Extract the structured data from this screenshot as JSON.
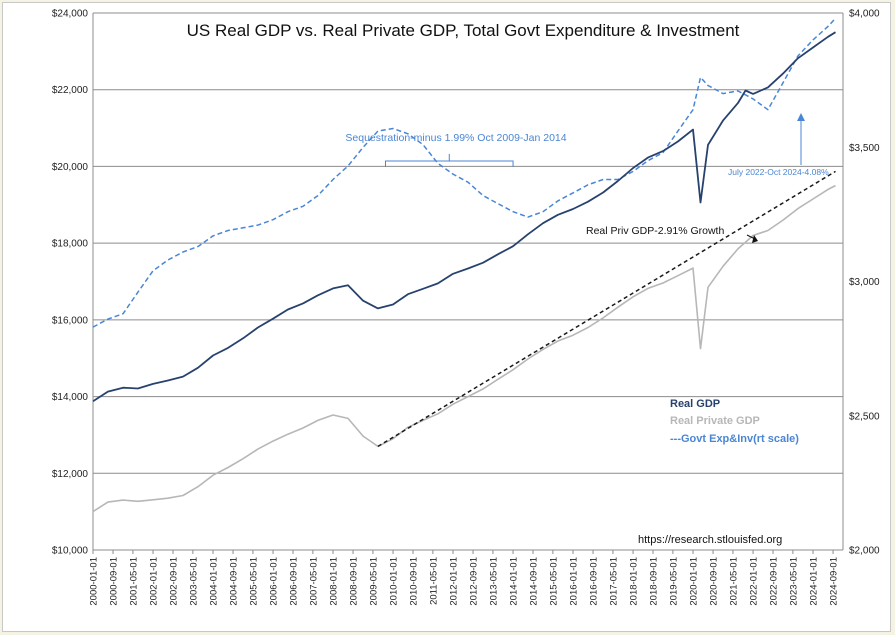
{
  "chart_data": {
    "type": "line",
    "title": "US Real GDP vs. Real Private GDP, Total Govt Expenditure & Investment",
    "source": "https://research.stlouisfed.org",
    "x_tick_labels": [
      "2000-01-01",
      "2000-09-01",
      "2001-05-01",
      "2002-01-01",
      "2002-09-01",
      "2003-05-01",
      "2004-01-01",
      "2004-09-01",
      "2005-05-01",
      "2006-01-01",
      "2006-09-01",
      "2007-05-01",
      "2008-01-01",
      "2008-09-01",
      "2009-05-01",
      "2010-01-01",
      "2010-09-01",
      "2011-05-01",
      "2012-01-01",
      "2012-09-01",
      "2013-05-01",
      "2014-01-01",
      "2014-09-01",
      "2015-05-01",
      "2016-01-01",
      "2016-09-01",
      "2017-05-01",
      "2018-01-01",
      "2018-09-01",
      "2019-05-01",
      "2020-01-01",
      "2020-09-01",
      "2021-05-01",
      "2022-01-01",
      "2022-09-01",
      "2023-05-01",
      "2024-01-01",
      "2024-09-01"
    ],
    "xlim": [
      "2000-01-01",
      "2024-12-31"
    ],
    "ylim_left": [
      10000,
      24000
    ],
    "y_left_ticks": [
      "$10,000",
      "$12,000",
      "$14,000",
      "$16,000",
      "$18,000",
      "$20,000",
      "$22,000",
      "$24,000"
    ],
    "ylim_right": [
      2000,
      4000
    ],
    "y_right_ticks": [
      "$2,000",
      "$2,500",
      "$3,000",
      "$3,500",
      "$4,000"
    ],
    "grid": true,
    "legend_position": "right",
    "colors": {
      "real_gdp": "#27426e",
      "real_private_gdp": "#b7b7b7",
      "govt": "#4a86d4",
      "trend": "#1a1a1a"
    },
    "series": [
      {
        "name": "Real GDP",
        "axis": "left",
        "points": [
          [
            "2000-01-01",
            13880
          ],
          [
            "2000-07-01",
            14130
          ],
          [
            "2001-01-01",
            14230
          ],
          [
            "2001-07-01",
            14210
          ],
          [
            "2002-01-01",
            14330
          ],
          [
            "2002-07-01",
            14420
          ],
          [
            "2003-01-01",
            14520
          ],
          [
            "2003-07-01",
            14750
          ],
          [
            "2004-01-01",
            15070
          ],
          [
            "2004-07-01",
            15270
          ],
          [
            "2005-01-01",
            15520
          ],
          [
            "2005-07-01",
            15800
          ],
          [
            "2006-01-01",
            16030
          ],
          [
            "2006-07-01",
            16270
          ],
          [
            "2007-01-01",
            16430
          ],
          [
            "2007-07-01",
            16640
          ],
          [
            "2008-01-01",
            16820
          ],
          [
            "2008-07-01",
            16900
          ],
          [
            "2009-01-01",
            16500
          ],
          [
            "2009-07-01",
            16300
          ],
          [
            "2010-01-01",
            16400
          ],
          [
            "2010-07-01",
            16670
          ],
          [
            "2011-01-01",
            16810
          ],
          [
            "2011-07-01",
            16950
          ],
          [
            "2012-01-01",
            17200
          ],
          [
            "2012-07-01",
            17340
          ],
          [
            "2013-01-01",
            17490
          ],
          [
            "2013-07-01",
            17710
          ],
          [
            "2014-01-01",
            17920
          ],
          [
            "2014-07-01",
            18230
          ],
          [
            "2015-01-01",
            18520
          ],
          [
            "2015-07-01",
            18740
          ],
          [
            "2016-01-01",
            18890
          ],
          [
            "2016-07-01",
            19080
          ],
          [
            "2017-01-01",
            19320
          ],
          [
            "2017-07-01",
            19620
          ],
          [
            "2018-01-01",
            19960
          ],
          [
            "2018-07-01",
            20230
          ],
          [
            "2019-01-01",
            20400
          ],
          [
            "2019-07-01",
            20650
          ],
          [
            "2020-01-01",
            20960
          ],
          [
            "2020-04-01",
            19060
          ],
          [
            "2020-07-01",
            20560
          ],
          [
            "2021-01-01",
            21200
          ],
          [
            "2021-07-01",
            21650
          ],
          [
            "2021-10-01",
            21980
          ],
          [
            "2022-01-01",
            21890
          ],
          [
            "2022-07-01",
            22060
          ],
          [
            "2023-01-01",
            22420
          ],
          [
            "2023-07-01",
            22820
          ],
          [
            "2024-01-01",
            23100
          ],
          [
            "2024-07-01",
            23380
          ],
          [
            "2024-10-01",
            23500
          ]
        ]
      },
      {
        "name": "Real Private GDP",
        "axis": "left",
        "points": [
          [
            "2000-01-01",
            11000
          ],
          [
            "2000-07-01",
            11250
          ],
          [
            "2001-01-01",
            11300
          ],
          [
            "2001-07-01",
            11270
          ],
          [
            "2002-01-01",
            11310
          ],
          [
            "2002-07-01",
            11350
          ],
          [
            "2003-01-01",
            11420
          ],
          [
            "2003-07-01",
            11650
          ],
          [
            "2004-01-01",
            11950
          ],
          [
            "2004-07-01",
            12150
          ],
          [
            "2005-01-01",
            12380
          ],
          [
            "2005-07-01",
            12630
          ],
          [
            "2006-01-01",
            12840
          ],
          [
            "2006-07-01",
            13020
          ],
          [
            "2007-01-01",
            13180
          ],
          [
            "2007-07-01",
            13380
          ],
          [
            "2008-01-01",
            13520
          ],
          [
            "2008-07-01",
            13430
          ],
          [
            "2009-01-01",
            12970
          ],
          [
            "2009-07-01",
            12700
          ],
          [
            "2010-01-01",
            12900
          ],
          [
            "2010-07-01",
            13200
          ],
          [
            "2011-01-01",
            13380
          ],
          [
            "2011-07-01",
            13550
          ],
          [
            "2012-01-01",
            13800
          ],
          [
            "2012-07-01",
            14000
          ],
          [
            "2013-01-01",
            14200
          ],
          [
            "2013-07-01",
            14450
          ],
          [
            "2014-01-01",
            14700
          ],
          [
            "2014-07-01",
            14980
          ],
          [
            "2015-01-01",
            15230
          ],
          [
            "2015-07-01",
            15450
          ],
          [
            "2016-01-01",
            15600
          ],
          [
            "2016-07-01",
            15800
          ],
          [
            "2017-01-01",
            16050
          ],
          [
            "2017-07-01",
            16330
          ],
          [
            "2018-01-01",
            16600
          ],
          [
            "2018-07-01",
            16820
          ],
          [
            "2019-01-01",
            16960
          ],
          [
            "2019-07-01",
            17150
          ],
          [
            "2020-01-01",
            17350
          ],
          [
            "2020-04-01",
            15250
          ],
          [
            "2020-07-01",
            16850
          ],
          [
            "2021-01-01",
            17400
          ],
          [
            "2021-07-01",
            17850
          ],
          [
            "2022-01-01",
            18200
          ],
          [
            "2022-07-01",
            18330
          ],
          [
            "2023-01-01",
            18600
          ],
          [
            "2023-07-01",
            18900
          ],
          [
            "2024-01-01",
            19150
          ],
          [
            "2024-07-01",
            19400
          ],
          [
            "2024-10-01",
            19500
          ]
        ]
      },
      {
        "name": "---Govt Exp&Inv(rt scale)",
        "axis": "right",
        "style": "dashed",
        "points": [
          [
            "2000-01-01",
            2830
          ],
          [
            "2000-07-01",
            2860
          ],
          [
            "2001-01-01",
            2880
          ],
          [
            "2001-07-01",
            2960
          ],
          [
            "2002-01-01",
            3040
          ],
          [
            "2002-07-01",
            3080
          ],
          [
            "2003-01-01",
            3110
          ],
          [
            "2003-07-01",
            3130
          ],
          [
            "2004-01-01",
            3170
          ],
          [
            "2004-07-01",
            3190
          ],
          [
            "2005-01-01",
            3200
          ],
          [
            "2005-07-01",
            3210
          ],
          [
            "2006-01-01",
            3230
          ],
          [
            "2006-07-01",
            3260
          ],
          [
            "2007-01-01",
            3280
          ],
          [
            "2007-07-01",
            3320
          ],
          [
            "2008-01-01",
            3380
          ],
          [
            "2008-07-01",
            3430
          ],
          [
            "2009-01-01",
            3500
          ],
          [
            "2009-07-01",
            3560
          ],
          [
            "2010-01-01",
            3570
          ],
          [
            "2010-07-01",
            3550
          ],
          [
            "2011-01-01",
            3510
          ],
          [
            "2011-07-01",
            3440
          ],
          [
            "2012-01-01",
            3400
          ],
          [
            "2012-07-01",
            3370
          ],
          [
            "2013-01-01",
            3320
          ],
          [
            "2013-07-01",
            3290
          ],
          [
            "2014-01-01",
            3260
          ],
          [
            "2014-07-01",
            3240
          ],
          [
            "2015-01-01",
            3260
          ],
          [
            "2015-07-01",
            3300
          ],
          [
            "2016-01-01",
            3330
          ],
          [
            "2016-07-01",
            3360
          ],
          [
            "2017-01-01",
            3380
          ],
          [
            "2017-07-01",
            3380
          ],
          [
            "2018-01-01",
            3410
          ],
          [
            "2018-07-01",
            3450
          ],
          [
            "2019-01-01",
            3480
          ],
          [
            "2019-07-01",
            3560
          ],
          [
            "2020-01-01",
            3640
          ],
          [
            "2020-04-01",
            3760
          ],
          [
            "2020-07-01",
            3730
          ],
          [
            "2021-01-01",
            3700
          ],
          [
            "2021-07-01",
            3710
          ],
          [
            "2022-01-01",
            3680
          ],
          [
            "2022-07-01",
            3640
          ],
          [
            "2023-01-01",
            3740
          ],
          [
            "2023-07-01",
            3840
          ],
          [
            "2024-01-01",
            3900
          ],
          [
            "2024-07-01",
            3950
          ],
          [
            "2024-10-01",
            3980
          ]
        ]
      },
      {
        "name": "Real Priv GDP-2.91% Growth",
        "axis": "left",
        "style": "dashed",
        "points": [
          [
            "2009-07-01",
            12700
          ],
          [
            "2024-10-01",
            19870
          ]
        ]
      }
    ],
    "annotations": {
      "sequestration": "Sequestration-minus 1.99% Oct 2009-Jan 2014",
      "july2022": "July 2022-Oct 2024-4.08%",
      "trend_label": "Real Priv GDP-2.91% Growth"
    },
    "legend": [
      {
        "label": "Real GDP",
        "color": "#27426e"
      },
      {
        "label": "Real Private GDP",
        "color": "#b7b7b7"
      },
      {
        "label": "---Govt Exp&Inv(rt scale)",
        "color": "#4a86d4"
      }
    ]
  }
}
